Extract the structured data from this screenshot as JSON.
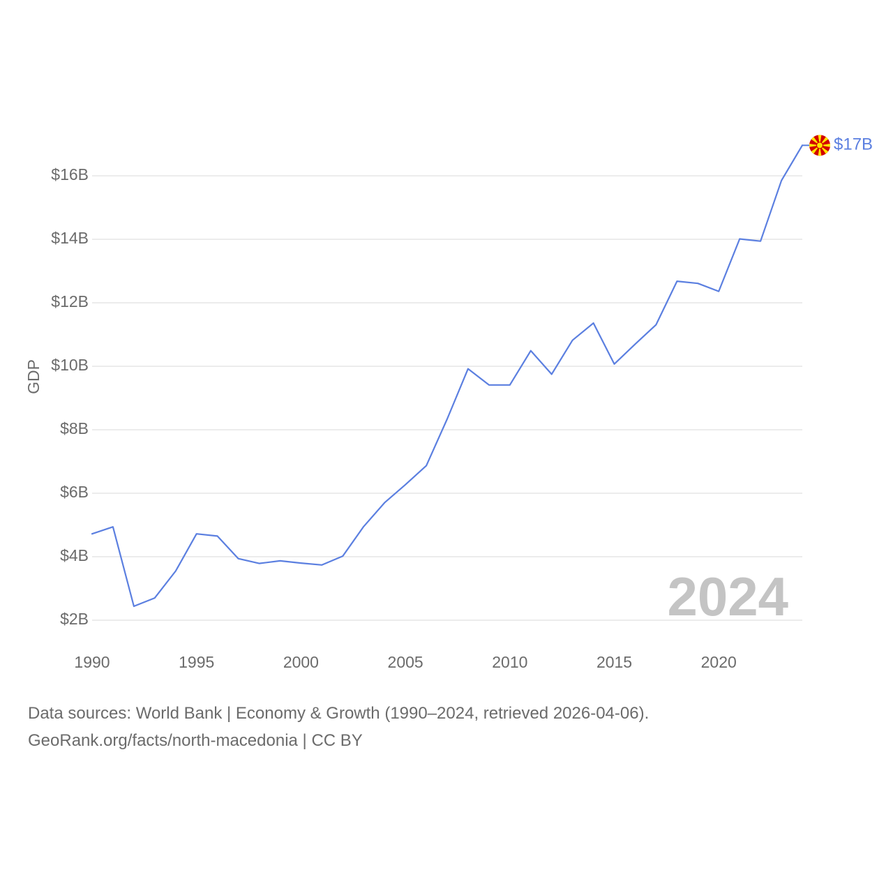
{
  "chart_data": {
    "type": "line",
    "ylabel": "GDP",
    "ylim": [
      2,
      17
    ],
    "xlim": [
      1990,
      2024
    ],
    "y_ticks": [
      {
        "value": 2,
        "label": "$2B"
      },
      {
        "value": 4,
        "label": "$4B"
      },
      {
        "value": 6,
        "label": "$6B"
      },
      {
        "value": 8,
        "label": "$8B"
      },
      {
        "value": 10,
        "label": "$10B"
      },
      {
        "value": 12,
        "label": "$12B"
      },
      {
        "value": 14,
        "label": "$14B"
      },
      {
        "value": 16,
        "label": "$16B"
      }
    ],
    "x_ticks": [
      {
        "value": 1990,
        "label": "1990"
      },
      {
        "value": 1995,
        "label": "1995"
      },
      {
        "value": 2000,
        "label": "2000"
      },
      {
        "value": 2005,
        "label": "2005"
      },
      {
        "value": 2010,
        "label": "2010"
      },
      {
        "value": 2015,
        "label": "2015"
      },
      {
        "value": 2020,
        "label": "2020"
      }
    ],
    "series": [
      {
        "name": "North Macedonia",
        "color": "#5b7fe0",
        "x": [
          1990,
          1991,
          1992,
          1993,
          1994,
          1995,
          1996,
          1997,
          1998,
          1999,
          2000,
          2001,
          2002,
          2003,
          2004,
          2005,
          2006,
          2007,
          2008,
          2009,
          2010,
          2011,
          2012,
          2013,
          2014,
          2015,
          2016,
          2017,
          2018,
          2019,
          2020,
          2021,
          2022,
          2023,
          2024
        ],
        "y": [
          4.72,
          4.94,
          2.44,
          2.7,
          3.55,
          4.72,
          4.65,
          3.94,
          3.79,
          3.87,
          3.8,
          3.74,
          4.02,
          4.95,
          5.7,
          6.27,
          6.87,
          8.34,
          9.92,
          9.41,
          9.41,
          10.49,
          9.75,
          10.82,
          11.36,
          10.07,
          10.7,
          11.31,
          12.68,
          12.61,
          12.36,
          14.01,
          13.94,
          15.85,
          16.96
        ]
      }
    ],
    "end_label": "$17B",
    "year_watermark": "2024"
  },
  "flag": {
    "country": "North Macedonia",
    "field_color": "#d20000",
    "sun_color": "#ffe600"
  },
  "footer": {
    "line1": "Data sources: World Bank | Economy & Growth (1990–2024, retrieved 2026-04-06).",
    "line2": "GeoRank.org/facts/north-macedonia | CC BY"
  }
}
